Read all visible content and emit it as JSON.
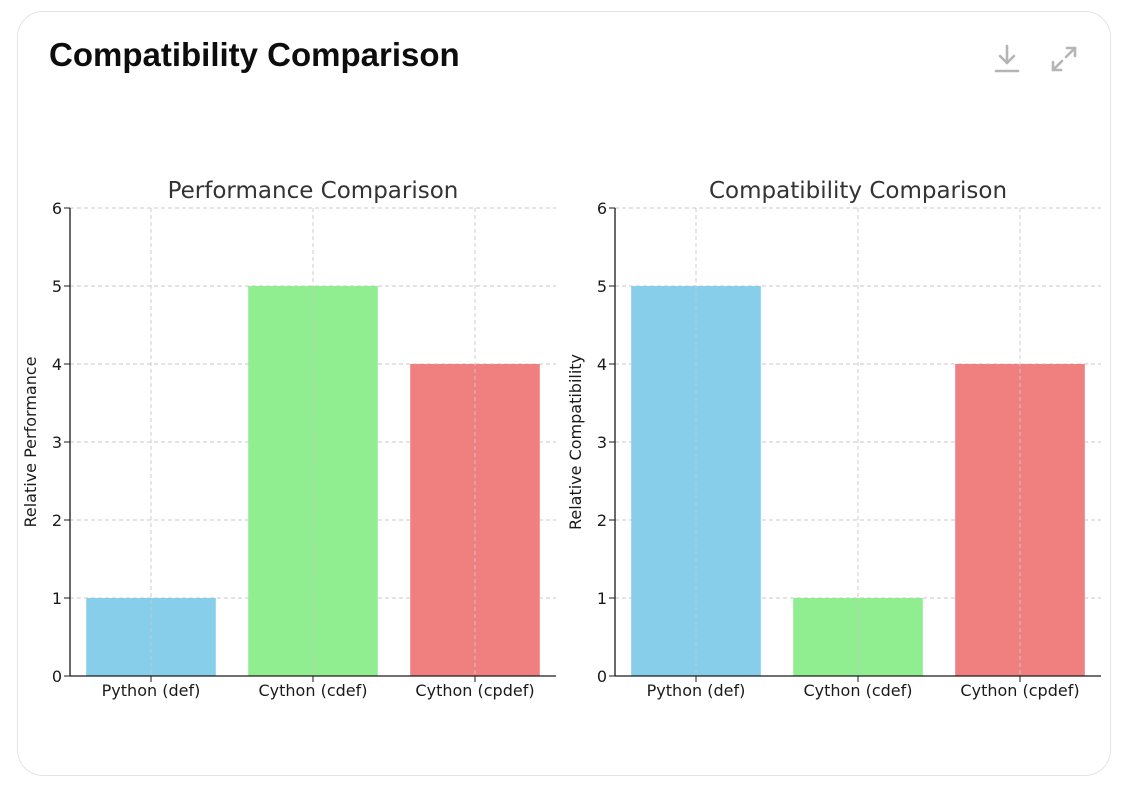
{
  "header": {
    "title": "Compatibility Comparison",
    "download_icon": "download-icon",
    "expand_icon": "expand-icon"
  },
  "chart_data": [
    {
      "type": "bar",
      "title": "Performance Comparison",
      "xlabel": "",
      "ylabel": "Relative Performance",
      "categories": [
        "Python (def)",
        "Cython (cdef)",
        "Cython (cpdef)"
      ],
      "values": [
        1,
        5,
        4
      ],
      "colors": [
        "#87ceeb",
        "#90ee90",
        "#f08080"
      ],
      "ylim": [
        0,
        6
      ],
      "yticks": [
        "0",
        "1",
        "2",
        "3",
        "4",
        "5",
        "6"
      ],
      "grid": true
    },
    {
      "type": "bar",
      "title": "Compatibility Comparison",
      "xlabel": "",
      "ylabel": "Relative Compatibility",
      "categories": [
        "Python (def)",
        "Cython (cdef)",
        "Cython (cpdef)"
      ],
      "values": [
        5,
        1,
        4
      ],
      "colors": [
        "#87ceeb",
        "#90ee90",
        "#f08080"
      ],
      "ylim": [
        0,
        6
      ],
      "yticks": [
        "0",
        "1",
        "2",
        "3",
        "4",
        "5",
        "6"
      ],
      "grid": true
    }
  ]
}
